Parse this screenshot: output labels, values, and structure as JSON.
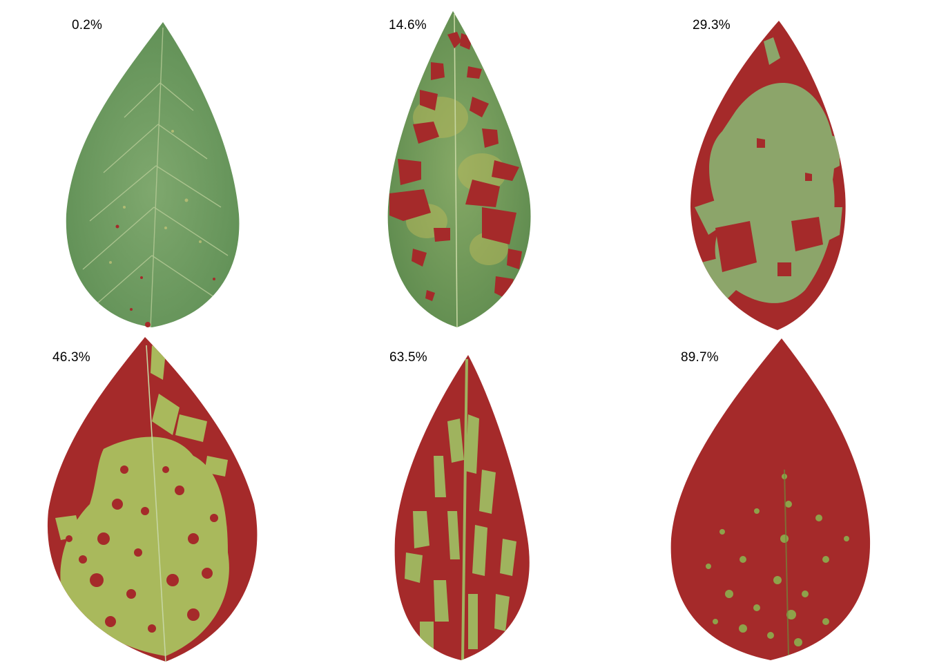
{
  "leaves": [
    {
      "severity_label": "0.2%",
      "severity": 0.2
    },
    {
      "severity_label": "14.6%",
      "severity": 14.6
    },
    {
      "severity_label": "29.3%",
      "severity": 29.3
    },
    {
      "severity_label": "46.3%",
      "severity": 46.3
    },
    {
      "severity_label": "63.5%",
      "severity": 63.5
    },
    {
      "severity_label": "89.7%",
      "severity": 89.7
    }
  ],
  "colors": {
    "healthy_leaf": "#6a9a5c",
    "healthy_leaf_light": "#7fa86e",
    "vein": "#c6d6a2",
    "lesion": "#a52a2a",
    "chlorotic": "#a9b95c",
    "background": "#ffffff"
  }
}
